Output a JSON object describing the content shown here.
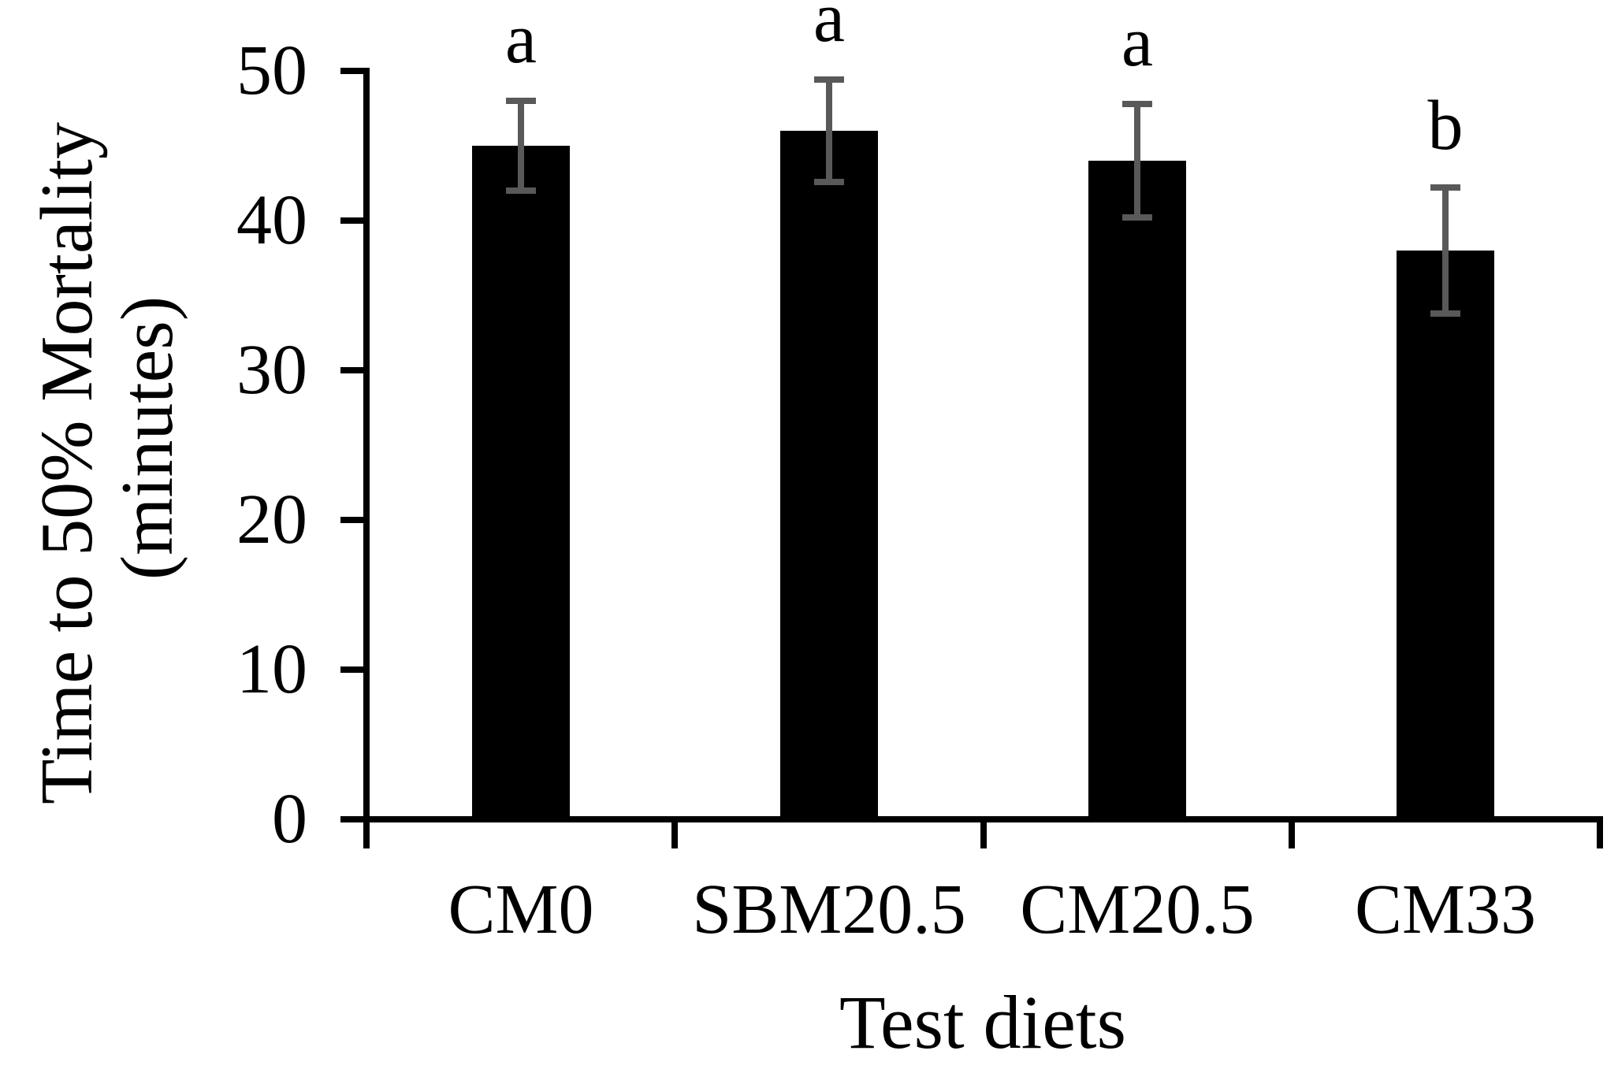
{
  "chart_data": {
    "type": "bar",
    "title": "",
    "xlabel": "Test diets",
    "ylabel": "Time to 50% Mortality (minutes)",
    "ylabel_lines": [
      "Time to 50% Mortality",
      "(minutes)"
    ],
    "categories": [
      "CM0",
      "SBM20.5",
      "CM20.5",
      "CM33"
    ],
    "values": [
      45,
      46,
      44,
      38
    ],
    "errors": [
      3.0,
      3.4,
      3.8,
      4.2
    ],
    "sig_letters": [
      "a",
      "a",
      "a",
      "b"
    ],
    "yticks": [
      0,
      10,
      20,
      30,
      40,
      50
    ],
    "ylim": [
      0,
      50
    ],
    "grid": false,
    "legend_position": "none",
    "bar_color": "#000000",
    "error_bar_color": "#595959",
    "axis_color": "#000000",
    "text_color": "#000000",
    "background_color": "#ffffff"
  }
}
